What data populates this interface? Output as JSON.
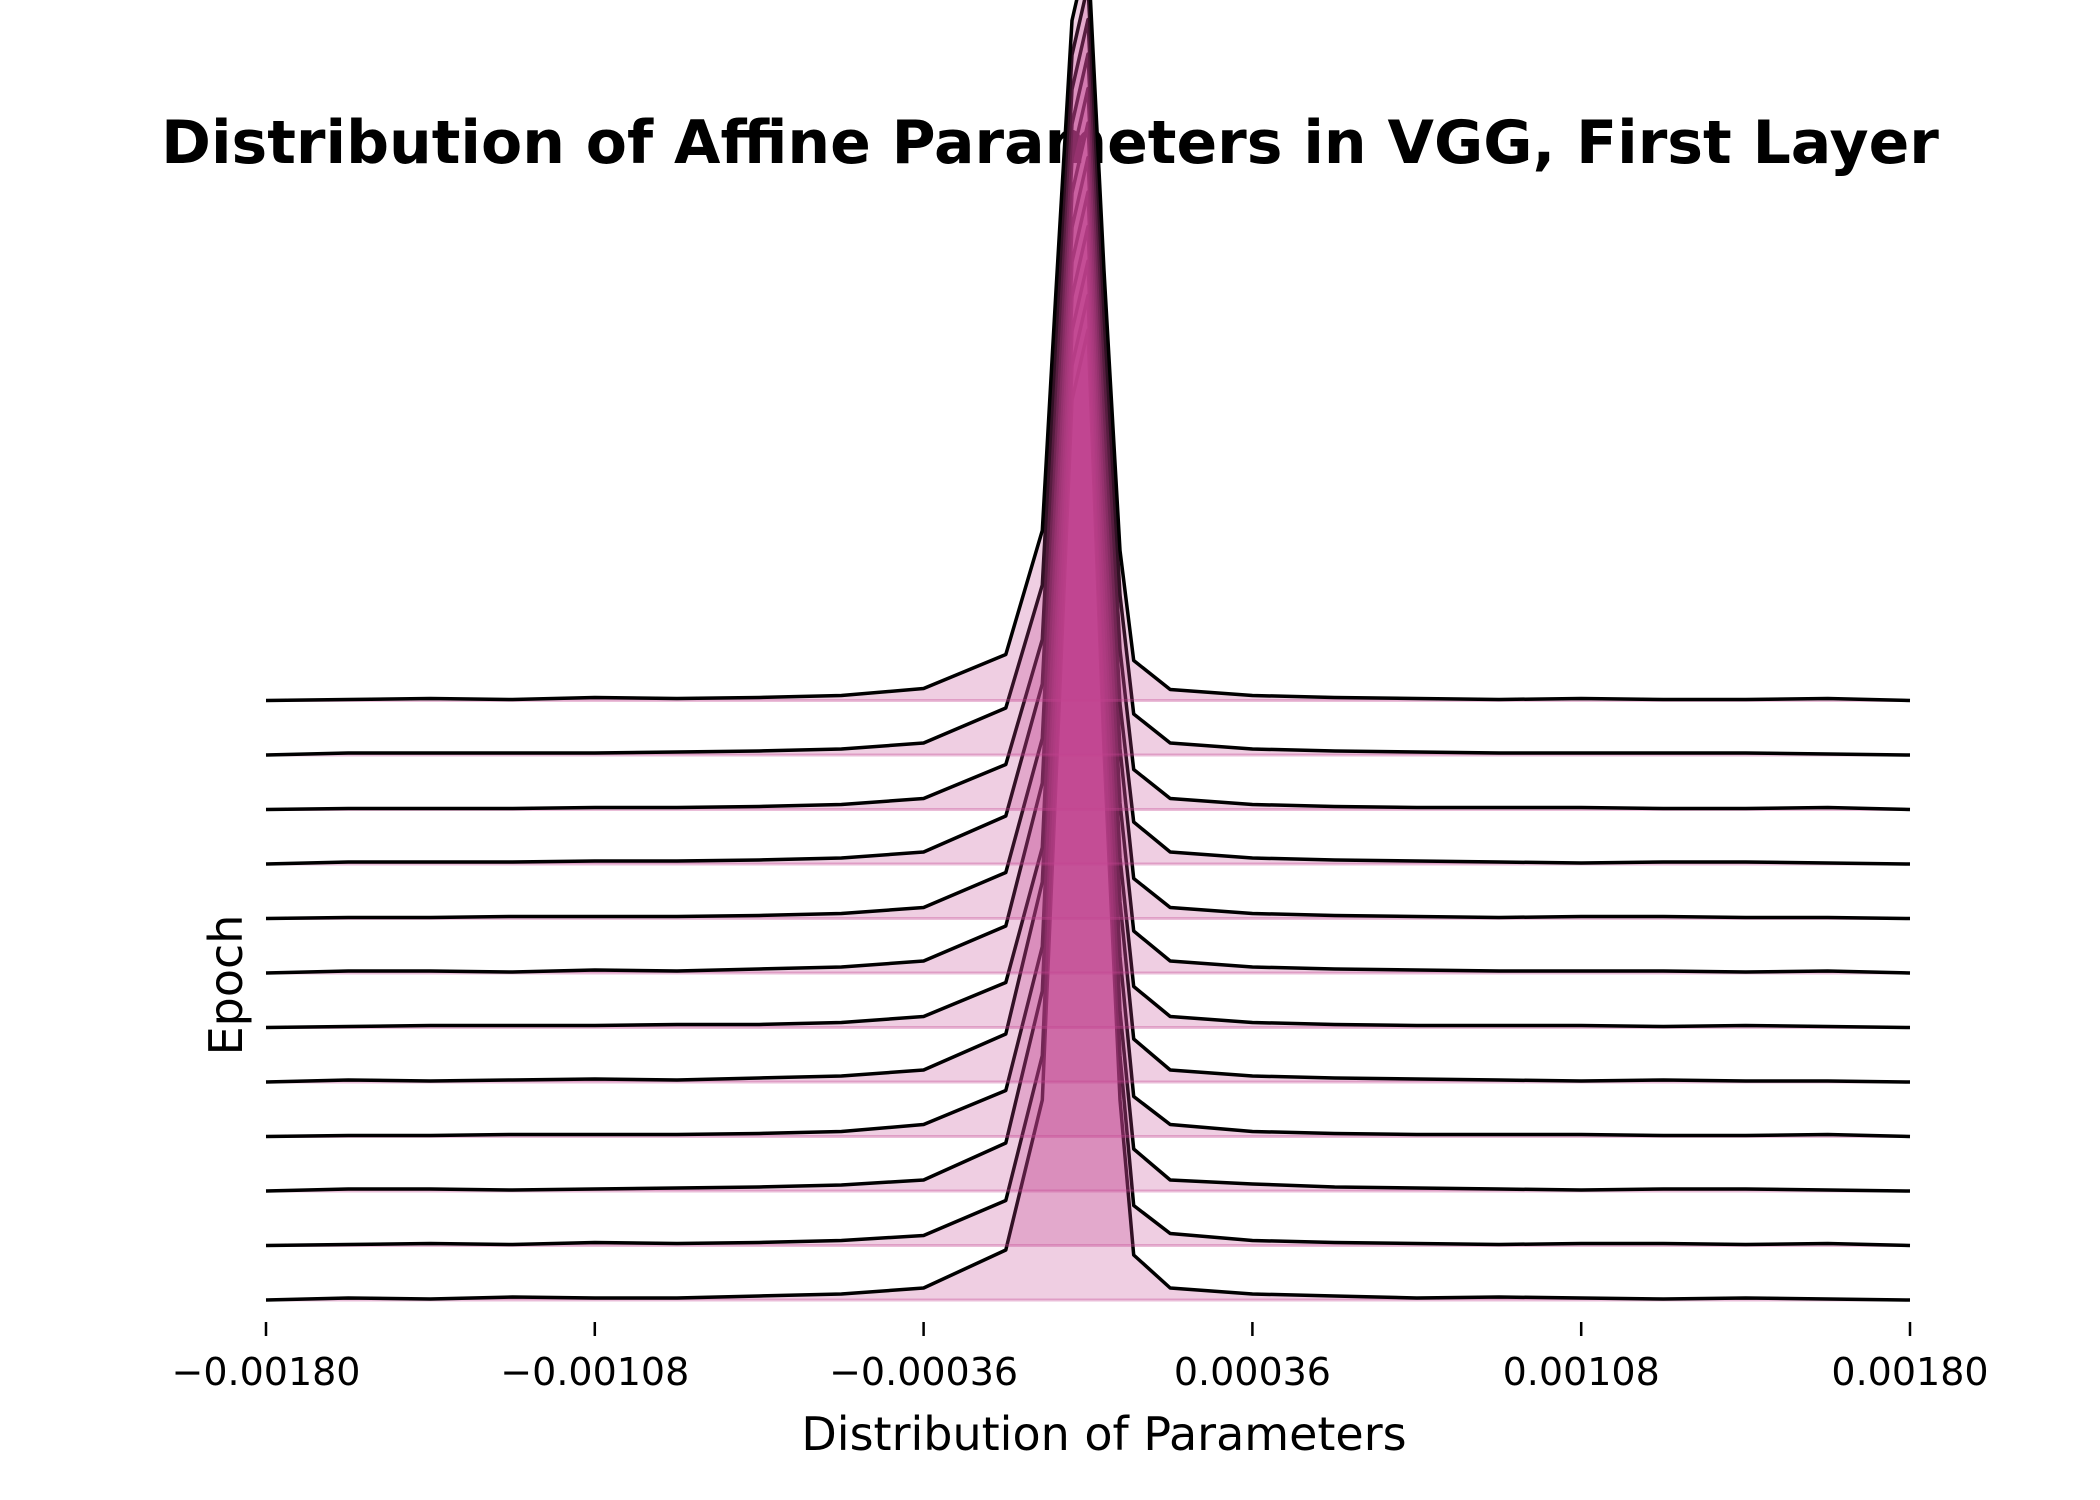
{
  "chart_data": {
    "type": "area",
    "title": "Distribution of Affine Parameters in VGG, First Layer",
    "xlabel": "Distribution of Parameters",
    "ylabel": "Epoch",
    "xlim": [
      -0.0018,
      0.0018
    ],
    "x_ticks": [
      "−0.00180",
      "−0.00108",
      "−0.00036",
      "0.00036",
      "0.00108",
      "0.00180"
    ],
    "x_tick_values": [
      -0.0018,
      -0.00108,
      -0.00036,
      0.00036,
      0.00108,
      0.0018
    ],
    "grid": false,
    "fill_color": "#c2418f",
    "line_color": "#000000",
    "x": [
      -0.0018,
      -0.00162,
      -0.00144,
      -0.00126,
      -0.00108,
      -0.0009,
      -0.00072,
      -0.00054,
      -0.00036,
      -0.00018,
      -0.0001,
      -7e-05,
      -3.5e-05,
      0.0,
      3.5e-05,
      7e-05,
      0.0001,
      0.00018,
      0.00036,
      0.00054,
      0.00072,
      0.0009,
      0.00108,
      0.00126,
      0.00144,
      0.00162,
      0.0018
    ],
    "series": [
      {
        "values": [
          0.0,
          0.002,
          0.001,
          0.003,
          0.002,
          0.002,
          0.004,
          0.006,
          0.012,
          0.05,
          0.2,
          0.52,
          0.9,
          0.97,
          0.55,
          0.2,
          0.045,
          0.012,
          0.006,
          0.004,
          0.002,
          0.003,
          0.002,
          0.001,
          0.002,
          0.001,
          0.0
        ]
      },
      {
        "values": [
          0.0,
          0.001,
          0.002,
          0.001,
          0.003,
          0.002,
          0.003,
          0.005,
          0.01,
          0.045,
          0.19,
          0.5,
          0.88,
          0.95,
          0.52,
          0.19,
          0.04,
          0.012,
          0.005,
          0.003,
          0.002,
          0.001,
          0.002,
          0.002,
          0.001,
          0.002,
          0.0
        ]
      },
      {
        "values": [
          0.0,
          0.002,
          0.002,
          0.001,
          0.002,
          0.003,
          0.004,
          0.006,
          0.011,
          0.048,
          0.2,
          0.5,
          0.86,
          0.93,
          0.53,
          0.18,
          0.042,
          0.011,
          0.007,
          0.004,
          0.003,
          0.002,
          0.001,
          0.002,
          0.002,
          0.001,
          0.0
        ]
      },
      {
        "values": [
          0.0,
          0.001,
          0.001,
          0.002,
          0.002,
          0.002,
          0.003,
          0.005,
          0.012,
          0.046,
          0.19,
          0.49,
          0.84,
          0.91,
          0.5,
          0.18,
          0.04,
          0.012,
          0.005,
          0.003,
          0.002,
          0.002,
          0.002,
          0.001,
          0.001,
          0.002,
          0.0
        ]
      },
      {
        "values": [
          0.0,
          0.002,
          0.001,
          0.002,
          0.003,
          0.002,
          0.004,
          0.006,
          0.012,
          0.048,
          0.2,
          0.48,
          0.82,
          0.89,
          0.5,
          0.18,
          0.043,
          0.012,
          0.006,
          0.004,
          0.003,
          0.002,
          0.001,
          0.002,
          0.001,
          0.001,
          0.0
        ]
      },
      {
        "values": [
          0.0,
          0.001,
          0.002,
          0.002,
          0.002,
          0.003,
          0.003,
          0.005,
          0.011,
          0.045,
          0.18,
          0.47,
          0.8,
          0.87,
          0.49,
          0.17,
          0.041,
          0.011,
          0.005,
          0.003,
          0.002,
          0.002,
          0.002,
          0.001,
          0.002,
          0.001,
          0.0
        ]
      },
      {
        "values": [
          0.0,
          0.002,
          0.002,
          0.001,
          0.003,
          0.002,
          0.004,
          0.006,
          0.012,
          0.047,
          0.19,
          0.46,
          0.78,
          0.85,
          0.48,
          0.17,
          0.042,
          0.012,
          0.006,
          0.004,
          0.003,
          0.002,
          0.002,
          0.002,
          0.001,
          0.002,
          0.0
        ]
      },
      {
        "values": [
          0.0,
          0.001,
          0.001,
          0.002,
          0.002,
          0.002,
          0.003,
          0.005,
          0.011,
          0.046,
          0.18,
          0.45,
          0.76,
          0.83,
          0.47,
          0.17,
          0.04,
          0.011,
          0.005,
          0.003,
          0.002,
          0.001,
          0.002,
          0.002,
          0.001,
          0.001,
          0.0
        ]
      },
      {
        "values": [
          0.0,
          0.002,
          0.002,
          0.002,
          0.003,
          0.003,
          0.004,
          0.006,
          0.012,
          0.048,
          0.18,
          0.44,
          0.74,
          0.81,
          0.46,
          0.16,
          0.042,
          0.012,
          0.006,
          0.004,
          0.003,
          0.002,
          0.001,
          0.002,
          0.002,
          0.001,
          0.0
        ]
      },
      {
        "values": [
          0.0,
          0.001,
          0.001,
          0.001,
          0.002,
          0.002,
          0.003,
          0.005,
          0.011,
          0.045,
          0.17,
          0.43,
          0.72,
          0.79,
          0.45,
          0.16,
          0.04,
          0.011,
          0.005,
          0.003,
          0.002,
          0.002,
          0.002,
          0.001,
          0.001,
          0.002,
          0.0
        ]
      },
      {
        "values": [
          0.0,
          0.002,
          0.002,
          0.002,
          0.002,
          0.003,
          0.004,
          0.006,
          0.012,
          0.047,
          0.17,
          0.42,
          0.7,
          0.77,
          0.44,
          0.16,
          0.041,
          0.012,
          0.006,
          0.004,
          0.003,
          0.002,
          0.002,
          0.002,
          0.002,
          0.001,
          0.0
        ]
      },
      {
        "values": [
          0.0,
          0.001,
          0.002,
          0.001,
          0.003,
          0.002,
          0.003,
          0.005,
          0.012,
          0.046,
          0.17,
          0.41,
          0.68,
          0.75,
          0.43,
          0.15,
          0.04,
          0.011,
          0.005,
          0.003,
          0.002,
          0.001,
          0.002,
          0.001,
          0.001,
          0.002,
          0.0
        ]
      }
    ]
  }
}
